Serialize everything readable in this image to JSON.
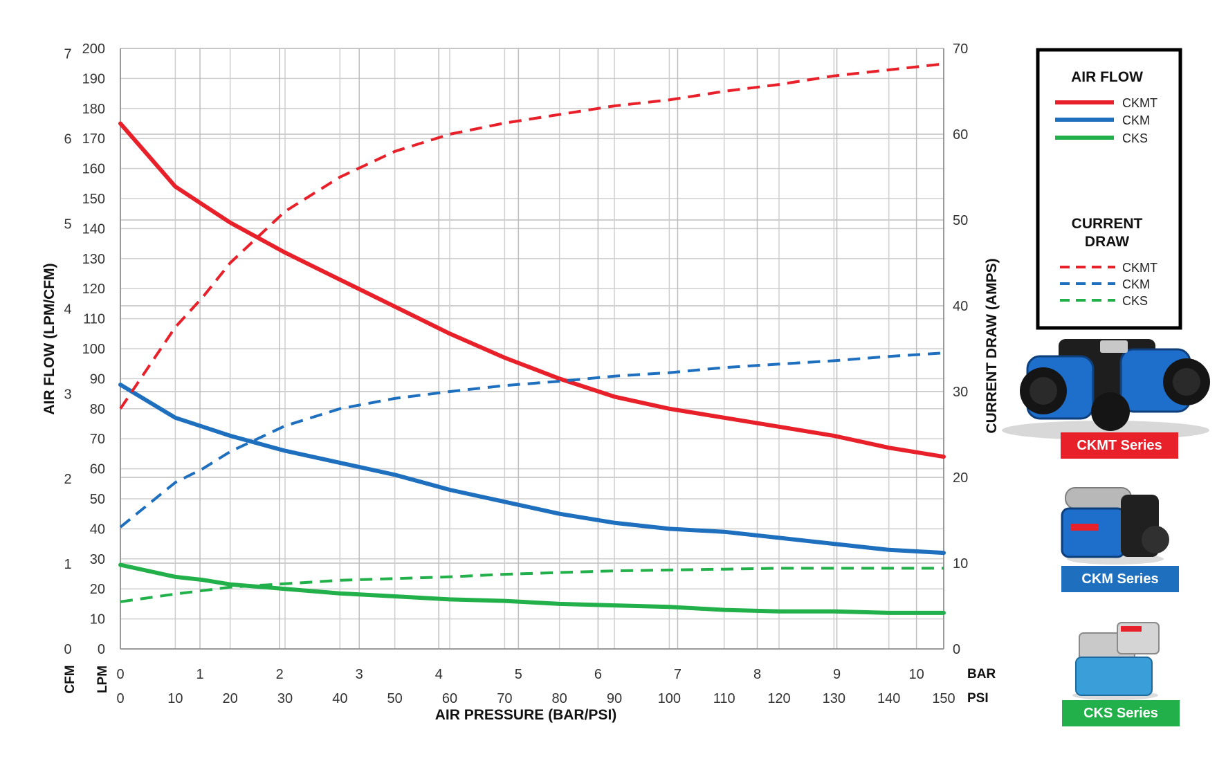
{
  "chart_data": {
    "type": "line",
    "title": "",
    "xlabel": "AIR PRESSURE (BAR/PSI)",
    "ylabel_left": "AIR FLOW (LPM/CFM)",
    "ylabel_right": "CURRENT DRAW (AMPS)",
    "x_unit_bar": "BAR",
    "x_unit_psi": "PSI",
    "y_unit_cfm": "CFM",
    "y_unit_lpm": "LPM",
    "xlim_psi": [
      0,
      150
    ],
    "ylim_lpm": [
      0,
      200
    ],
    "ylim_amps": [
      0,
      70
    ],
    "x_ticks_psi": [
      "0",
      "10",
      "20",
      "30",
      "40",
      "50",
      "60",
      "70",
      "80",
      "90",
      "100",
      "110",
      "120",
      "130",
      "140",
      "150"
    ],
    "x_ticks_bar": [
      "0",
      "1",
      "2",
      "3",
      "4",
      "5",
      "6",
      "7",
      "8",
      "9",
      "10"
    ],
    "y_ticks_lpm": [
      "0",
      "10",
      "20",
      "30",
      "40",
      "50",
      "60",
      "70",
      "80",
      "90",
      "100",
      "110",
      "120",
      "130",
      "140",
      "150",
      "160",
      "170",
      "180",
      "190",
      "200"
    ],
    "y_ticks_cfm": [
      "0",
      "1",
      "2",
      "3",
      "4",
      "5",
      "6",
      "7"
    ],
    "y_ticks_amps": [
      "0",
      "10",
      "20",
      "30",
      "40",
      "50",
      "60",
      "70"
    ],
    "grid": true,
    "x_psi": [
      0,
      10,
      15,
      20,
      30,
      40,
      50,
      60,
      70,
      80,
      90,
      100,
      110,
      120,
      130,
      140,
      150
    ],
    "series": [
      {
        "name": "CKMT",
        "group": "AIR FLOW",
        "axis": "lpm",
        "color": "#e8202a",
        "dash": false,
        "values": [
          175,
          154,
          148,
          142,
          132,
          123,
          114,
          105,
          97,
          90,
          84,
          80,
          77,
          74,
          71,
          67,
          64
        ]
      },
      {
        "name": "CKM",
        "group": "AIR FLOW",
        "axis": "lpm",
        "color": "#1f6fbf",
        "dash": false,
        "values": [
          88,
          77,
          74,
          71,
          66,
          62,
          58,
          53,
          49,
          45,
          42,
          40,
          39,
          37,
          35,
          33,
          32
        ]
      },
      {
        "name": "CKS",
        "group": "AIR FLOW",
        "axis": "lpm",
        "color": "#22b04a",
        "dash": false,
        "values": [
          28,
          24,
          23,
          21.5,
          20,
          18.5,
          17.5,
          16.5,
          16,
          15,
          14.5,
          14,
          13,
          12.5,
          12.5,
          12,
          12
        ]
      },
      {
        "name": "CKMT",
        "group": "CURRENT DRAW",
        "axis": "amps",
        "color": "#e8202a",
        "dash": true,
        "values": [
          28,
          37.5,
          41,
          45,
          51,
          55,
          58,
          60,
          61.3,
          62.3,
          63.3,
          64,
          65,
          65.8,
          66.8,
          67.5,
          68.2
        ]
      },
      {
        "name": "CKM",
        "group": "CURRENT DRAW",
        "axis": "amps",
        "color": "#1f6fbf",
        "dash": true,
        "values": [
          14.2,
          19.4,
          21,
          23,
          26,
          28,
          29.2,
          30,
          30.7,
          31.2,
          31.8,
          32.2,
          32.8,
          33.2,
          33.6,
          34.1,
          34.5
        ]
      },
      {
        "name": "CKS",
        "group": "CURRENT DRAW",
        "axis": "amps",
        "color": "#22b04a",
        "dash": true,
        "values": [
          5.5,
          6.4,
          6.8,
          7.2,
          7.6,
          8,
          8.2,
          8.4,
          8.7,
          8.9,
          9.1,
          9.2,
          9.3,
          9.4,
          9.4,
          9.4,
          9.4
        ]
      }
    ]
  },
  "legend": {
    "air_flow_title": "AIR FLOW",
    "current_draw_title_line1": "CURRENT",
    "current_draw_title_line2": "DRAW",
    "items": [
      "CKMT",
      "CKM",
      "CKS"
    ]
  },
  "products": [
    {
      "name": "CKMT Series",
      "color": "#e8202a",
      "body": "#1e6fcc"
    },
    {
      "name": "CKM Series",
      "color": "#1f6fbf",
      "body": "#1e6fcc"
    },
    {
      "name": "CKS Series",
      "color": "#22b04a",
      "body": "#3a9fd8"
    }
  ]
}
